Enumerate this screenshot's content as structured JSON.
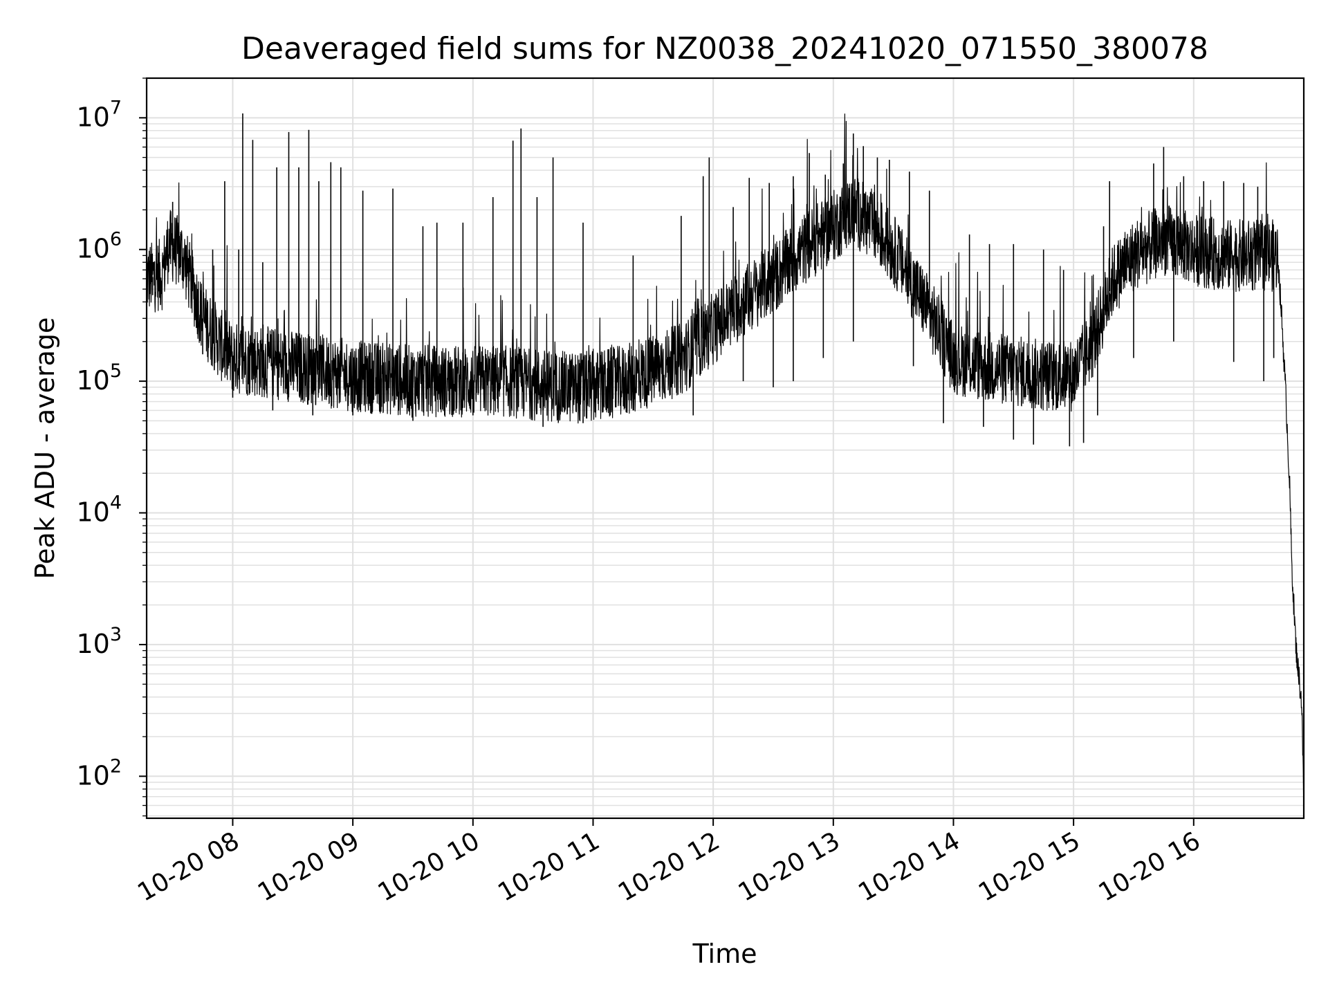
{
  "chart_data": {
    "type": "line",
    "title": "Deaveraged field sums for NZ0038_20241020_071550_380078",
    "xlabel": "Time",
    "ylabel": "Peak ADU - average",
    "yscale": "log",
    "ylim": [
      48,
      20000000
    ],
    "xlim": [
      "2024-10-20 07:17",
      "2024-10-20 16:55"
    ],
    "grid": true,
    "line_color": "#000000",
    "grid_color": "#e0e0e0",
    "x_ticks": [
      {
        "t": "2024-10-20 08:00",
        "label": "10-20 08"
      },
      {
        "t": "2024-10-20 09:00",
        "label": "10-20 09"
      },
      {
        "t": "2024-10-20 10:00",
        "label": "10-20 10"
      },
      {
        "t": "2024-10-20 11:00",
        "label": "10-20 11"
      },
      {
        "t": "2024-10-20 12:00",
        "label": "10-20 12"
      },
      {
        "t": "2024-10-20 13:00",
        "label": "10-20 13"
      },
      {
        "t": "2024-10-20 14:00",
        "label": "10-20 14"
      },
      {
        "t": "2024-10-20 15:00",
        "label": "10-20 15"
      },
      {
        "t": "2024-10-20 16:00",
        "label": "10-20 16"
      }
    ],
    "y_ticks": [
      {
        "v": 100,
        "base": "10",
        "exp": "2"
      },
      {
        "v": 1000,
        "base": "10",
        "exp": "3"
      },
      {
        "v": 10000,
        "base": "10",
        "exp": "4"
      },
      {
        "v": 100000,
        "base": "10",
        "exp": "5"
      },
      {
        "v": 1000000,
        "base": "10",
        "exp": "6"
      },
      {
        "v": 10000000,
        "base": "10",
        "exp": "7"
      }
    ],
    "series": [
      {
        "points": [
          [
            "2024-10-20 07:17",
            600000
          ],
          [
            "2024-10-20 07:25",
            650000
          ],
          [
            "2024-10-20 07:28",
            1100000
          ],
          [
            "2024-10-20 07:35",
            900000
          ],
          [
            "2024-10-20 07:45",
            300000
          ],
          [
            "2024-10-20 07:55",
            180000
          ],
          [
            "2024-10-20 08:00",
            150000
          ],
          [
            "2024-10-20 08:15",
            140000
          ],
          [
            "2024-10-20 08:30",
            130000
          ],
          [
            "2024-10-20 08:45",
            120000
          ],
          [
            "2024-10-20 09:00",
            110000
          ],
          [
            "2024-10-20 09:15",
            105000
          ],
          [
            "2024-10-20 09:30",
            100000
          ],
          [
            "2024-10-20 09:45",
            100000
          ],
          [
            "2024-10-20 10:00",
            100000
          ],
          [
            "2024-10-20 10:15",
            100000
          ],
          [
            "2024-10-20 10:30",
            95000
          ],
          [
            "2024-10-20 10:45",
            90000
          ],
          [
            "2024-10-20 11:00",
            90000
          ],
          [
            "2024-10-20 11:15",
            100000
          ],
          [
            "2024-10-20 11:30",
            120000
          ],
          [
            "2024-10-20 11:45",
            150000
          ],
          [
            "2024-10-20 12:00",
            250000
          ],
          [
            "2024-10-20 12:15",
            400000
          ],
          [
            "2024-10-20 12:30",
            600000
          ],
          [
            "2024-10-20 12:45",
            1000000
          ],
          [
            "2024-10-20 13:00",
            1500000
          ],
          [
            "2024-10-20 13:10",
            2000000
          ],
          [
            "2024-10-20 13:20",
            1500000
          ],
          [
            "2024-10-20 13:30",
            1000000
          ],
          [
            "2024-10-20 13:45",
            400000
          ],
          [
            "2024-10-20 14:00",
            150000
          ],
          [
            "2024-10-20 14:15",
            130000
          ],
          [
            "2024-10-20 14:30",
            120000
          ],
          [
            "2024-10-20 14:45",
            110000
          ],
          [
            "2024-10-20 15:00",
            110000
          ],
          [
            "2024-10-20 15:10",
            200000
          ],
          [
            "2024-10-20 15:20",
            600000
          ],
          [
            "2024-10-20 15:30",
            900000
          ],
          [
            "2024-10-20 15:45",
            1200000
          ],
          [
            "2024-10-20 16:00",
            1000000
          ],
          [
            "2024-10-20 16:15",
            900000
          ],
          [
            "2024-10-20 16:30",
            900000
          ],
          [
            "2024-10-20 16:42",
            900000
          ],
          [
            "2024-10-20 16:44",
            300000
          ],
          [
            "2024-10-20 16:46",
            80000
          ],
          [
            "2024-10-20 16:48",
            15000
          ],
          [
            "2024-10-20 16:49",
            4000
          ],
          [
            "2024-10-20 16:50",
            2000
          ],
          [
            "2024-10-20 16:51",
            1000
          ],
          [
            "2024-10-20 16:52",
            700
          ],
          [
            "2024-10-20 16:53",
            500
          ],
          [
            "2024-10-20 16:54",
            350
          ],
          [
            "2024-10-20 16:55",
            60
          ]
        ],
        "spikes": [
          [
            "2024-10-20 07:30",
            2300000
          ],
          [
            "2024-10-20 07:50",
            1000000
          ],
          [
            "2024-10-20 07:56",
            3300000
          ],
          [
            "2024-10-20 08:03",
            1000000
          ],
          [
            "2024-10-20 08:05",
            10800000
          ],
          [
            "2024-10-20 08:10",
            6800000
          ],
          [
            "2024-10-20 08:15",
            800000
          ],
          [
            "2024-10-20 08:22",
            4200000
          ],
          [
            "2024-10-20 08:28",
            7800000
          ],
          [
            "2024-10-20 08:33",
            4200000
          ],
          [
            "2024-10-20 08:38",
            8100000
          ],
          [
            "2024-10-20 08:43",
            3300000
          ],
          [
            "2024-10-20 08:49",
            4600000
          ],
          [
            "2024-10-20 08:54",
            4200000
          ],
          [
            "2024-10-20 09:05",
            2800000
          ],
          [
            "2024-10-20 09:20",
            2900000
          ],
          [
            "2024-10-20 09:35",
            1500000
          ],
          [
            "2024-10-20 09:42",
            1600000
          ],
          [
            "2024-10-20 09:55",
            1600000
          ],
          [
            "2024-10-20 10:10",
            2500000
          ],
          [
            "2024-10-20 10:20",
            6700000
          ],
          [
            "2024-10-20 10:24",
            8300000
          ],
          [
            "2024-10-20 10:32",
            2500000
          ],
          [
            "2024-10-20 10:40",
            5000000
          ],
          [
            "2024-10-20 10:55",
            1600000
          ],
          [
            "2024-10-20 11:20",
            900000
          ],
          [
            "2024-10-20 11:44",
            1800000
          ],
          [
            "2024-10-20 11:55",
            3600000
          ],
          [
            "2024-10-20 11:58",
            5000000
          ],
          [
            "2024-10-20 12:10",
            2100000
          ],
          [
            "2024-10-20 12:18",
            3500000
          ],
          [
            "2024-10-20 12:28",
            3200000
          ],
          [
            "2024-10-20 12:40",
            3600000
          ],
          [
            "2024-10-20 12:48",
            5400000
          ],
          [
            "2024-10-20 12:56",
            3700000
          ],
          [
            "2024-10-20 13:05",
            4500000
          ],
          [
            "2024-10-20 13:10",
            7600000
          ],
          [
            "2024-10-20 13:15",
            6100000
          ],
          [
            "2024-10-20 13:22",
            5000000
          ],
          [
            "2024-10-20 13:28",
            4800000
          ],
          [
            "2024-10-20 13:38",
            3900000
          ],
          [
            "2024-10-20 13:48",
            2800000
          ],
          [
            "2024-10-20 14:08",
            1300000
          ],
          [
            "2024-10-20 14:18",
            1100000
          ],
          [
            "2024-10-20 14:30",
            1100000
          ],
          [
            "2024-10-20 14:45",
            1000000
          ],
          [
            "2024-10-20 14:55",
            700000
          ],
          [
            "2024-10-20 15:15",
            1500000
          ],
          [
            "2024-10-20 15:18",
            3300000
          ],
          [
            "2024-10-20 15:40",
            4500000
          ],
          [
            "2024-10-20 15:45",
            6000000
          ],
          [
            "2024-10-20 15:55",
            3600000
          ],
          [
            "2024-10-20 16:05",
            3300000
          ],
          [
            "2024-10-20 16:15",
            3300000
          ],
          [
            "2024-10-20 16:25",
            3200000
          ],
          [
            "2024-10-20 16:32",
            3000000
          ]
        ],
        "dips": [
          [
            "2024-10-20 07:20",
            450000
          ],
          [
            "2024-10-20 07:45",
            160000
          ],
          [
            "2024-10-20 08:00",
            75000
          ],
          [
            "2024-10-20 08:20",
            60000
          ],
          [
            "2024-10-20 08:40",
            55000
          ],
          [
            "2024-10-20 09:00",
            55000
          ],
          [
            "2024-10-20 09:30",
            50000
          ],
          [
            "2024-10-20 10:00",
            55000
          ],
          [
            "2024-10-20 10:35",
            45000
          ],
          [
            "2024-10-20 10:55",
            48000
          ],
          [
            "2024-10-20 11:20",
            60000
          ],
          [
            "2024-10-20 11:50",
            55000
          ],
          [
            "2024-10-20 12:15",
            100000
          ],
          [
            "2024-10-20 12:30",
            90000
          ],
          [
            "2024-10-20 12:40",
            100000
          ],
          [
            "2024-10-20 12:55",
            150000
          ],
          [
            "2024-10-20 13:10",
            200000
          ],
          [
            "2024-10-20 13:40",
            130000
          ],
          [
            "2024-10-20 13:55",
            48000
          ],
          [
            "2024-10-20 14:15",
            45000
          ],
          [
            "2024-10-20 14:30",
            36000
          ],
          [
            "2024-10-20 14:40",
            33000
          ],
          [
            "2024-10-20 14:58",
            32000
          ],
          [
            "2024-10-20 15:05",
            34000
          ],
          [
            "2024-10-20 15:12",
            55000
          ],
          [
            "2024-10-20 15:30",
            150000
          ],
          [
            "2024-10-20 15:50",
            200000
          ],
          [
            "2024-10-20 16:20",
            140000
          ],
          [
            "2024-10-20 16:35",
            100000
          ],
          [
            "2024-10-20 16:40",
            150000
          ]
        ]
      }
    ]
  }
}
